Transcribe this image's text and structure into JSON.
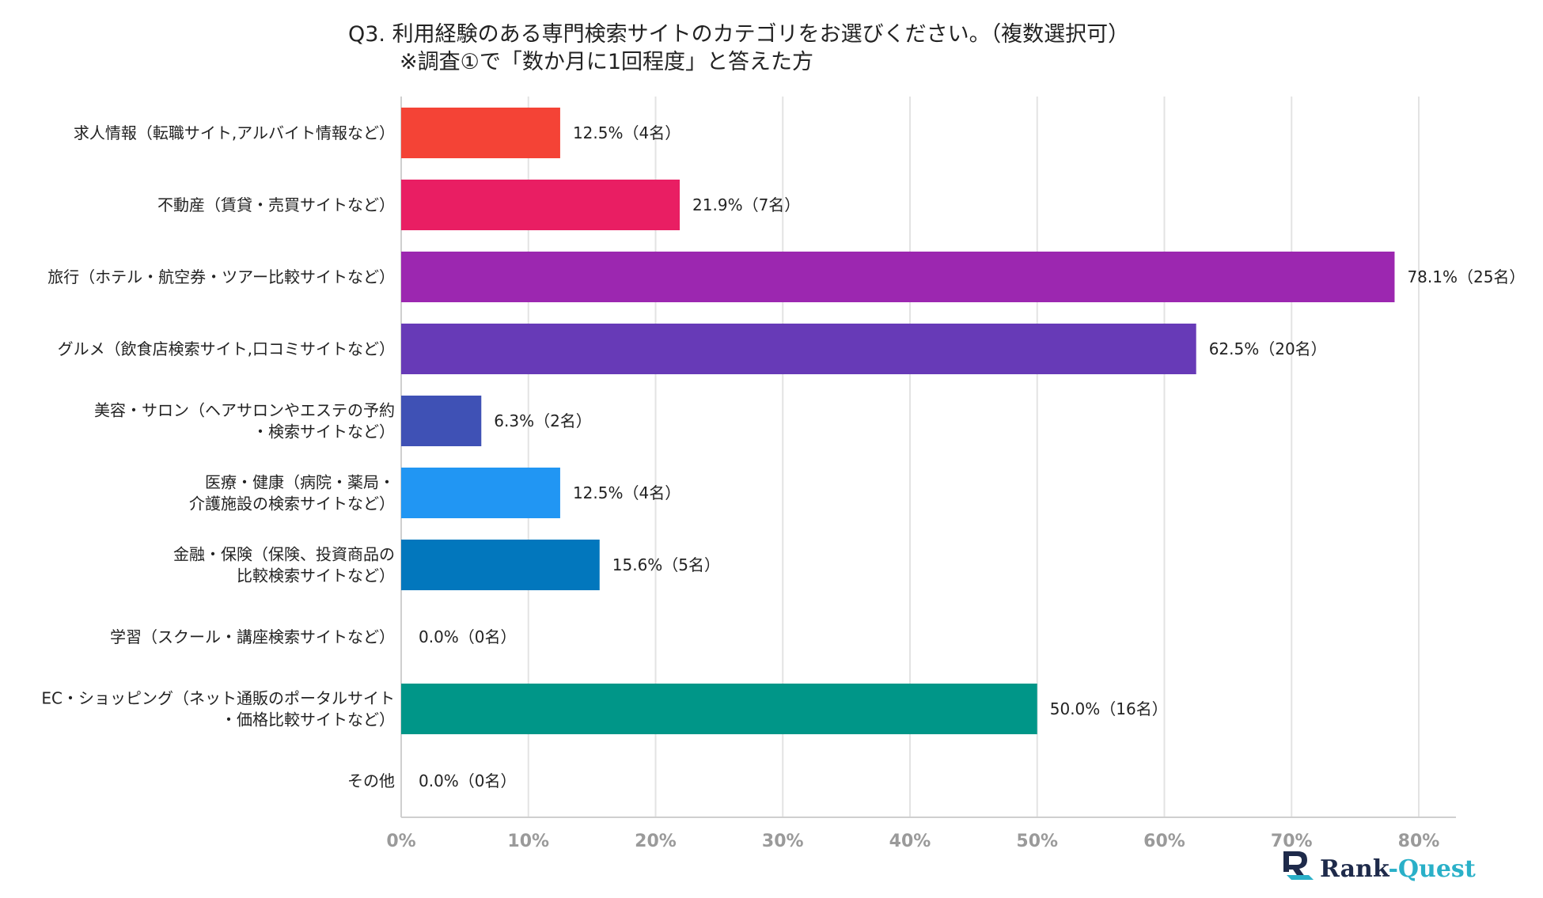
{
  "chart_data": {
    "type": "bar",
    "orientation": "horizontal",
    "title": "Q3. 利用経験のある専門検索サイトのカテゴリをお選びください。（複数選択可）",
    "subtitle": "※調査①で「数か月に1回程度」と答えた方",
    "categories": [
      [
        "求人情報（転職サイト,アルバイト情報など）"
      ],
      [
        "不動産（賃貸・売買サイトなど）"
      ],
      [
        "旅行（ホテル・航空券・ツアー比較サイトなど）"
      ],
      [
        "グルメ（飲食店検索サイト,口コミサイトなど）"
      ],
      [
        "美容・サロン（ヘアサロンやエステの予約",
        "・検索サイトなど）"
      ],
      [
        "医療・健康（病院・薬局・",
        "介護施設の検索サイトなど）"
      ],
      [
        "金融・保険（保険、投資商品の",
        "比較検索サイトなど）"
      ],
      [
        "学習（スクール・講座検索サイトなど）"
      ],
      [
        "EC・ショッピング（ネット通販のポータルサイト",
        "・価格比較サイトなど）"
      ],
      [
        "その他"
      ]
    ],
    "values": [
      12.5,
      21.9,
      78.1,
      62.5,
      6.3,
      12.5,
      15.6,
      0.0,
      50.0,
      0.0
    ],
    "data_labels": [
      "12.5%（4名）",
      "21.9%（7名）",
      "78.1%（25名）",
      "62.5%（20名）",
      "6.3%（2名）",
      "12.5%（4名）",
      "15.6%（5名）",
      "0.0%（0名）",
      "50.0%（16名）",
      "0.0%（0名）"
    ],
    "colors": [
      "#f44336",
      "#e91e63",
      "#9c27b0",
      "#673ab7",
      "#3f51b5",
      "#2196f3",
      "#0277bd",
      "#00bcd4",
      "#009688",
      "#4caf50"
    ],
    "xlim": [
      0,
      80
    ],
    "xticks": [
      0,
      10,
      20,
      30,
      40,
      50,
      60,
      70,
      80
    ],
    "xtick_labels": [
      "0%",
      "10%",
      "20%",
      "30%",
      "40%",
      "50%",
      "60%",
      "70%",
      "80%"
    ],
    "grid": true,
    "legend": "none"
  },
  "brand": {
    "name": "Rank-Quest",
    "name_part1": "Rank",
    "name_part2": "-Quest",
    "accent_color": "#2ab0c8",
    "dark_color": "#1e2a4a"
  }
}
